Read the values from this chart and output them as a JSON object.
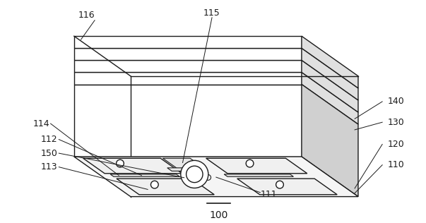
{
  "bg_color": "#ffffff",
  "line_color": "#1a1a1a",
  "figsize": [
    6.03,
    3.16
  ],
  "dpi": 100,
  "label_fontsize": 9,
  "title_fontsize": 10
}
